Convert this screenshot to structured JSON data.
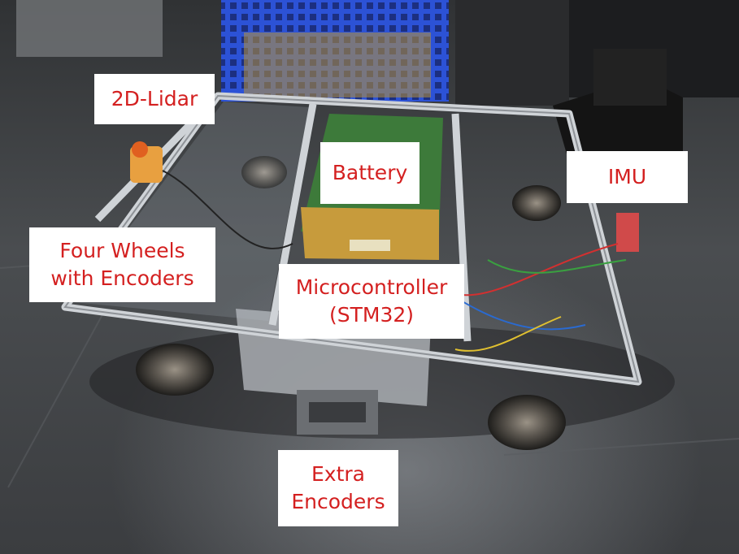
{
  "labels": {
    "lidar": "2D-Lidar",
    "battery": "Battery",
    "imu": "IMU",
    "wheels": [
      "Four Wheels",
      "with Encoders"
    ],
    "mcu": [
      "Microcontroller",
      "(STM32)"
    ],
    "extra": [
      "Extra",
      "Encoders"
    ]
  },
  "colors": {
    "label_text": "#d42020",
    "label_bg": "#ffffff",
    "floor": "#4a4c4f",
    "frame": "#c9ccd0",
    "crate": "#2a4fd0"
  }
}
